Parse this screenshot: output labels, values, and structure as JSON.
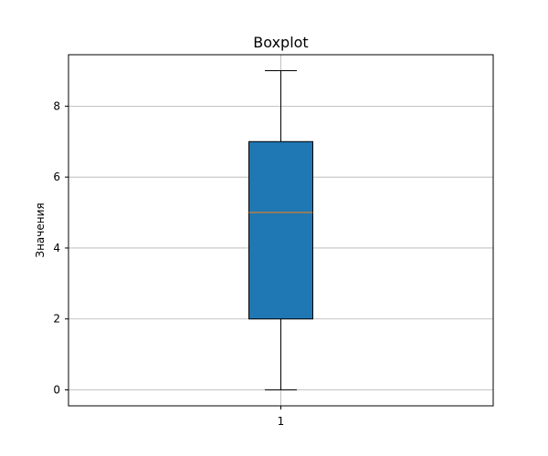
{
  "chart_data": {
    "type": "boxplot",
    "title": "Boxplot",
    "xlabel": "",
    "ylabel": "Значения",
    "categories": [
      "1"
    ],
    "boxes": [
      {
        "category": "1",
        "whisker_low": 0,
        "q1": 2,
        "median": 5,
        "q3": 7,
        "whisker_high": 9
      }
    ],
    "ylim": [
      -0.45,
      9.45
    ],
    "y_ticks": [
      0,
      2,
      4,
      6,
      8
    ],
    "y_tick_labels": [
      "0",
      "2",
      "4",
      "6",
      "8"
    ],
    "grid": "horizontal",
    "colors": {
      "box_fill": "#1f77b4",
      "median_line": "#ff7f0e",
      "grid": "#b0b0b0",
      "axes": "#000000"
    }
  }
}
